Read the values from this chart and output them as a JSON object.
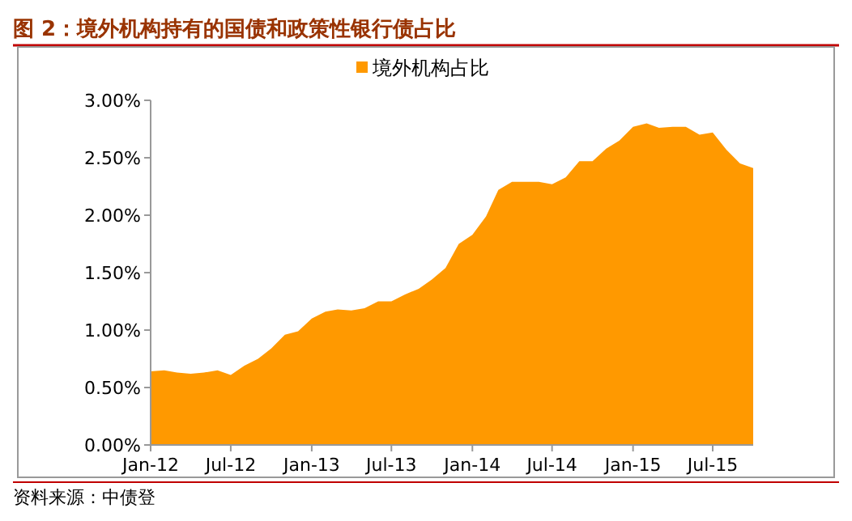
{
  "chart_data": {
    "type": "area",
    "title": "图 2：境外机构持有的国债和政策性银行债占比",
    "annotations": [
      "资料来源：中债登"
    ],
    "legend": "top",
    "grid": false,
    "x": [
      "2012-01",
      "2012-02",
      "2012-03",
      "2012-04",
      "2012-05",
      "2012-06",
      "2012-07",
      "2012-08",
      "2012-09",
      "2012-10",
      "2012-11",
      "2012-12",
      "2013-01",
      "2013-02",
      "2013-03",
      "2013-04",
      "2013-05",
      "2013-06",
      "2013-07",
      "2013-08",
      "2013-09",
      "2013-10",
      "2013-11",
      "2013-12",
      "2014-01",
      "2014-02",
      "2014-03",
      "2014-04",
      "2014-05",
      "2014-06",
      "2014-07",
      "2014-08",
      "2014-09",
      "2014-10",
      "2014-11",
      "2014-12",
      "2015-01",
      "2015-02",
      "2015-03",
      "2015-04",
      "2015-05",
      "2015-06",
      "2015-07",
      "2015-08",
      "2015-09",
      "2015-10"
    ],
    "series": [
      {
        "name": "境外机构占比",
        "color": "#ff9900",
        "values": [
          0.64,
          0.65,
          0.63,
          0.62,
          0.63,
          0.65,
          0.61,
          0.69,
          0.75,
          0.84,
          0.96,
          0.99,
          1.1,
          1.16,
          1.18,
          1.17,
          1.19,
          1.25,
          1.25,
          1.31,
          1.36,
          1.44,
          1.54,
          1.75,
          1.83,
          1.99,
          2.22,
          2.29,
          2.29,
          2.29,
          2.27,
          2.33,
          2.47,
          2.47,
          2.58,
          2.65,
          2.77,
          2.8,
          2.76,
          2.77,
          2.77,
          2.7,
          2.72,
          2.57,
          2.45,
          2.41
        ]
      }
    ],
    "xlim": [
      "2012-01",
      "2015-10"
    ],
    "xticks": [
      {
        "value": "2012-01",
        "label": "Jan-12"
      },
      {
        "value": "2012-07",
        "label": "Jul-12"
      },
      {
        "value": "2013-01",
        "label": "Jan-13"
      },
      {
        "value": "2013-07",
        "label": "Jul-13"
      },
      {
        "value": "2014-01",
        "label": "Jan-14"
      },
      {
        "value": "2014-07",
        "label": "Jul-14"
      },
      {
        "value": "2015-01",
        "label": "Jan-15"
      },
      {
        "value": "2015-07",
        "label": "Jul-15"
      }
    ],
    "ylim": [
      0,
      3
    ],
    "yticks": [
      {
        "value": 0,
        "label": "0.00%"
      },
      {
        "value": 0.5,
        "label": "0.50%"
      },
      {
        "value": 1,
        "label": "1.00%"
      },
      {
        "value": 1.5,
        "label": "1.50%"
      },
      {
        "value": 2,
        "label": "2.00%"
      },
      {
        "value": 2.5,
        "label": "2.50%"
      },
      {
        "value": 3,
        "label": "3.00%"
      }
    ]
  }
}
